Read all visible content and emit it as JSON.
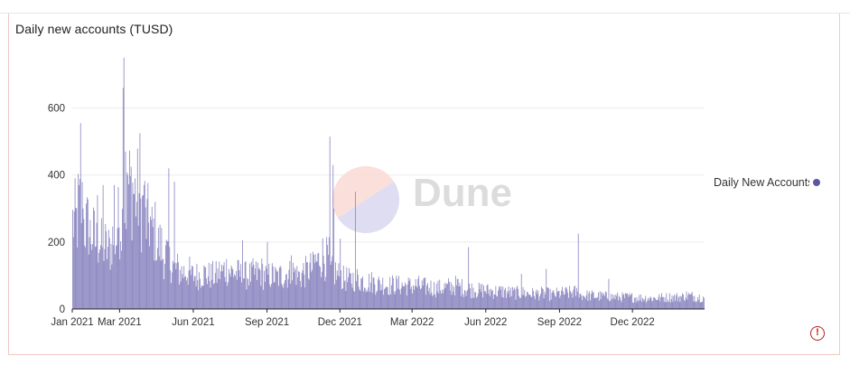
{
  "panel": {
    "title": "Daily new accounts (TUSD)",
    "watermark": "Dune",
    "alert_glyph": "!",
    "alert_icon": "alert-circle-icon"
  },
  "legend": {
    "label": "Daily New Accounts",
    "placement": "right"
  },
  "colors": {
    "series": "#8a86c0",
    "series_stroke": "#7a76b6",
    "legend_dot": "#5b57a0",
    "grid": "#ececec",
    "axis": "#222222",
    "alert": "#b22222"
  },
  "chart_data": {
    "type": "bar",
    "title": "Daily new accounts (TUSD)",
    "xlabel": "",
    "ylabel": "",
    "x_start": "2021-01-01",
    "x_end": "2023-02-28",
    "ylim": [
      0,
      750
    ],
    "yticks": [
      0,
      200,
      400,
      600
    ],
    "grid": true,
    "xtick_labels": [
      "Jan 2021",
      "Mar 2021",
      "Jun 2021",
      "Sep 2021",
      "Dec 2021",
      "Mar 2022",
      "Jun 2022",
      "Sep 2022",
      "Dec 2022"
    ],
    "xtick_dates": [
      "2021-01-01",
      "2021-03-01",
      "2021-06-01",
      "2021-09-01",
      "2021-12-01",
      "2022-03-01",
      "2022-06-01",
      "2022-09-01",
      "2022-12-01"
    ],
    "series": [
      {
        "name": "Daily New Accounts",
        "weekly_avg": [
          260,
          300,
          250,
          220,
          200,
          190,
          180,
          210,
          260,
          320,
          360,
          340,
          300,
          260,
          230,
          190,
          160,
          140,
          120,
          110,
          110,
          100,
          100,
          105,
          100,
          100,
          110,
          120,
          110,
          105,
          100,
          100,
          105,
          110,
          100,
          100,
          95,
          100,
          105,
          110,
          100,
          110,
          120,
          140,
          160,
          150,
          110,
          100,
          90,
          85,
          90,
          85,
          80,
          80,
          75,
          75,
          70,
          72,
          70,
          70,
          68,
          70,
          66,
          65,
          62,
          62,
          64,
          66,
          70,
          64,
          60,
          58,
          55,
          56,
          54,
          52,
          52,
          50,
          48,
          48,
          48,
          46,
          45,
          46,
          45,
          42,
          45,
          47,
          48,
          50,
          42,
          40,
          40,
          38,
          38,
          37,
          36,
          35,
          35,
          35,
          34,
          33,
          33,
          32,
          33,
          34,
          35,
          35,
          36,
          40,
          38,
          36,
          35,
          34,
          35
        ],
        "spikes": [
          {
            "date": "2021-01-04",
            "value": 390
          },
          {
            "date": "2021-01-09",
            "value": 370
          },
          {
            "date": "2021-01-11",
            "value": 555
          },
          {
            "date": "2021-01-14",
            "value": 300
          },
          {
            "date": "2021-02-01",
            "value": 340
          },
          {
            "date": "2021-02-08",
            "value": 370
          },
          {
            "date": "2021-02-22",
            "value": 370
          },
          {
            "date": "2021-03-05",
            "value": 660
          },
          {
            "date": "2021-03-06",
            "value": 750
          },
          {
            "date": "2021-03-08",
            "value": 470
          },
          {
            "date": "2021-03-11",
            "value": 400
          },
          {
            "date": "2021-03-22",
            "value": 320
          },
          {
            "date": "2021-03-26",
            "value": 525
          },
          {
            "date": "2021-03-31",
            "value": 370
          },
          {
            "date": "2021-05-01",
            "value": 420
          },
          {
            "date": "2021-05-08",
            "value": 380
          },
          {
            "date": "2021-08-01",
            "value": 205
          },
          {
            "date": "2021-09-01",
            "value": 200
          },
          {
            "date": "2021-10-01",
            "value": 160
          },
          {
            "date": "2021-11-18",
            "value": 515
          },
          {
            "date": "2021-11-22",
            "value": 430
          },
          {
            "date": "2021-11-23",
            "value": 300
          },
          {
            "date": "2021-12-01",
            "value": 210
          },
          {
            "date": "2021-12-20",
            "value": 350
          },
          {
            "date": "2022-05-10",
            "value": 185
          },
          {
            "date": "2022-07-15",
            "value": 105
          },
          {
            "date": "2022-08-15",
            "value": 120
          },
          {
            "date": "2022-09-24",
            "value": 225
          },
          {
            "date": "2022-11-01",
            "value": 90
          }
        ]
      }
    ]
  }
}
